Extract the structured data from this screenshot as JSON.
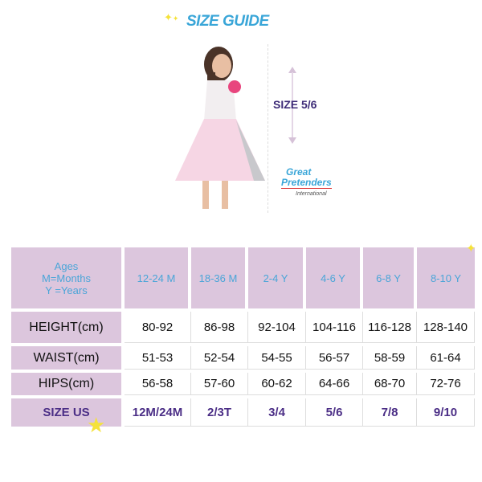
{
  "title": "SIZE GUIDE",
  "model_size_label": "SIZE 5/6",
  "logo": {
    "line1": "Great",
    "line2": "Pretenders",
    "line3": "International"
  },
  "colors": {
    "header_bg": "#dcc6dd",
    "header_text": "#4aa5d8",
    "size_text": "#4b2e86",
    "title": "#3aa6d8"
  },
  "table": {
    "corner": [
      "Ages",
      "M=Months",
      "Y =Years"
    ],
    "columns": [
      "12-24 M",
      "18-36 M",
      "2-4 Y",
      "4-6 Y",
      "6-8 Y",
      "8-10 Y"
    ],
    "rows": [
      {
        "label": "HEIGHT(cm)",
        "values": [
          "80-92",
          "86-98",
          "92-104",
          "104-116",
          "116-128",
          "128-140"
        ]
      },
      {
        "label": "WAIST(cm)",
        "values": [
          "51-53",
          "52-54",
          "54-55",
          "56-57",
          "58-59",
          "61-64"
        ]
      },
      {
        "label": "HIPS(cm)",
        "values": [
          "56-58",
          "57-60",
          "60-62",
          "64-66",
          "68-70",
          "72-76"
        ]
      },
      {
        "label": "SIZE US",
        "values": [
          "12M/24M",
          "2/3T",
          "3/4",
          "5/6",
          "7/8",
          "9/10"
        ]
      }
    ]
  }
}
